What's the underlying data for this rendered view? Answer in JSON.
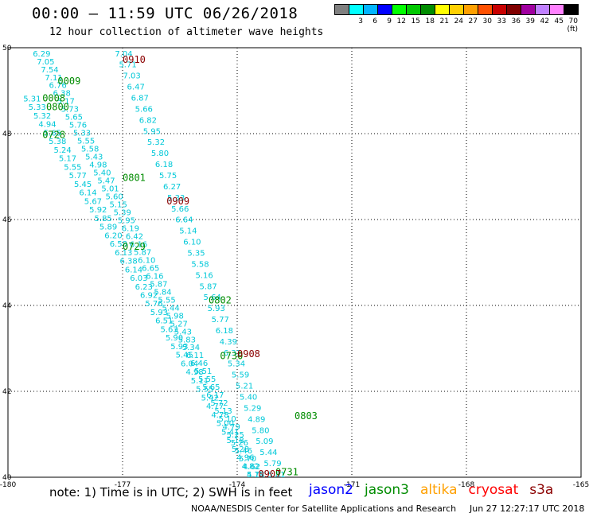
{
  "header": {
    "title": "00:00 – 11:59 UTC 06/26/2018",
    "subtitle": "12 hour collection of altimeter wave heights"
  },
  "colorbar": {
    "colors": [
      "#808080",
      "#00ffff",
      "#00b4ff",
      "#0000ff",
      "#00ff00",
      "#00c800",
      "#008c00",
      "#ffff00",
      "#ffd000",
      "#ffa000",
      "#ff5000",
      "#c80000",
      "#800000",
      "#a000a0",
      "#c080ff",
      "#ff80ff",
      "#000000"
    ],
    "labels": [
      "",
      "3",
      "6",
      "9",
      "12",
      "15",
      "18",
      "21",
      "24",
      "27",
      "30",
      "33",
      "36",
      "39",
      "42",
      "45",
      "70 (ft)"
    ]
  },
  "footer": {
    "note": "note: 1) Time is in UTC; 2) SWH is in feet",
    "credit": "NOAA/NESDIS Center for Satellite Applications and Research",
    "timestamp": "Jun 27 12:27:17 UTC 2018"
  },
  "satellites": [
    {
      "name": "jason2",
      "color": "#0000ff"
    },
    {
      "name": "jason3",
      "color": "#008c00"
    },
    {
      "name": "altika",
      "color": "#ffa000"
    },
    {
      "name": "cryosat",
      "color": "#ff0000"
    },
    {
      "name": "s3a",
      "color": "#8b0000"
    }
  ],
  "chart_data": {
    "type": "scatter",
    "xlim": [
      -180,
      -165
    ],
    "ylim": [
      40,
      50
    ],
    "xticks": [
      -180,
      -177,
      -174,
      -171,
      -168,
      -165
    ],
    "yticks": [
      40,
      42,
      44,
      46,
      48,
      50
    ],
    "grid": true,
    "time_labels": [
      {
        "text": "0910",
        "lon": -177.0,
        "lat": 49.65,
        "color": "#8b0000"
      },
      {
        "text": "0009",
        "lon": -178.7,
        "lat": 49.15,
        "color": "#008c00"
      },
      {
        "text": "0008",
        "lon": -179.1,
        "lat": 48.75,
        "color": "#008c00"
      },
      {
        "text": "0800",
        "lon": -179.0,
        "lat": 48.55,
        "color": "#008c00"
      },
      {
        "text": "0728",
        "lon": -179.1,
        "lat": 47.9,
        "color": "#008c00"
      },
      {
        "text": "0801",
        "lon": -177.0,
        "lat": 46.9,
        "color": "#008c00"
      },
      {
        "text": "0909",
        "lon": -175.85,
        "lat": 46.35,
        "color": "#8b0000"
      },
      {
        "text": "0729",
        "lon": -177.0,
        "lat": 45.3,
        "color": "#008c00"
      },
      {
        "text": "0802",
        "lon": -174.75,
        "lat": 44.05,
        "color": "#008c00"
      },
      {
        "text": "0730",
        "lon": -174.45,
        "lat": 42.75,
        "color": "#008c00"
      },
      {
        "text": "0908",
        "lon": -174.0,
        "lat": 42.8,
        "color": "#8b0000"
      },
      {
        "text": "0803",
        "lon": -172.5,
        "lat": 41.35,
        "color": "#008c00"
      },
      {
        "text": "0731",
        "lon": -173.0,
        "lat": 40.05,
        "color": "#008c00"
      },
      {
        "text": "0907",
        "lon": -173.45,
        "lat": 40.0,
        "color": "#8b0000"
      }
    ],
    "tracks": [
      {
        "name": "track-west",
        "color": "#00c8d8",
        "start": [
          -179.35,
          49.8
        ],
        "end": [
          -173.75,
          40.0
        ],
        "values": [
          "6.29",
          "7.05",
          "7.54",
          "7.11",
          "6.76",
          "6.38",
          "5.17",
          "5.73",
          "5.65",
          "5.76",
          "5.33",
          "5.55",
          "5.58",
          "5.43",
          "4.98",
          "5.40",
          "5.47",
          "5.01",
          "5.60",
          "5.15",
          "5.39",
          "5.95",
          "6.19",
          "6.42",
          "6.16",
          "5.87",
          "6.10",
          "6.65",
          "6.16",
          "5.87",
          "5.84",
          "5.55",
          "5.44",
          "5.98",
          "5.27",
          "5.43",
          "5.83",
          "5.34",
          "6.11",
          "6.46",
          "5.51",
          "5.55",
          "5.65",
          "6.17",
          "5.72",
          "5.13",
          "5.10",
          "4.79",
          "5.25",
          "5.26",
          "5.46",
          "5.70",
          "4.62",
          "4.77"
        ]
      },
      {
        "name": "track-mid",
        "color": "#00c8d8",
        "start": [
          -179.6,
          48.75
        ],
        "end": [
          -173.75,
          40.0
        ],
        "values": [
          "5.31",
          "5.33",
          "5.32",
          "4.94",
          "5.65",
          "5.38",
          "5.24",
          "5.17",
          "5.55",
          "5.77",
          "5.45",
          "6.14",
          "5.67",
          "5.92",
          "5.85",
          "5.89",
          "6.20",
          "6.58",
          "6.13",
          "6.38",
          "6.14",
          "6.03",
          "6.23",
          "6.92",
          "5.76",
          "5.93",
          "6.51",
          "5.63",
          "5.90",
          "5.93",
          "5.45",
          "6.04",
          "4.98",
          "5.11",
          "5.55",
          "5.42",
          "4.77",
          "4.78",
          "5.00",
          "5.41",
          "5.18",
          "5.28",
          "4.96",
          "4.82",
          "5.18"
        ]
      },
      {
        "name": "track-east",
        "color": "#00c8d8",
        "start": [
          -177.2,
          49.8
        ],
        "end": [
          -173.2,
          40.0
        ],
        "values": [
          "7.04",
          "5.71",
          "7.03",
          "6.47",
          "6.87",
          "5.66",
          "6.82",
          "5.95",
          "5.32",
          "5.80",
          "6.18",
          "5.75",
          "6.27",
          "5.33",
          "5.66",
          "6.64",
          "5.14",
          "6.10",
          "5.35",
          "5.58",
          "5.16",
          "5.87",
          "5.64",
          "5.93",
          "5.77",
          "6.18",
          "4.39",
          "6.31",
          "5.34",
          "5.59",
          "5.21",
          "5.40",
          "5.29",
          "4.89",
          "5.80",
          "5.09",
          "5.44",
          "5.79",
          "5.81"
        ]
      }
    ]
  }
}
